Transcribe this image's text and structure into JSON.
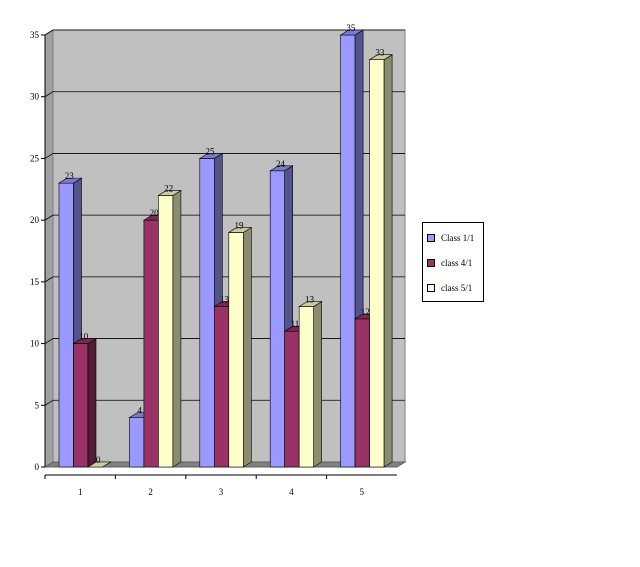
{
  "chart_data": {
    "type": "bar",
    "style": "3d-clustered-column",
    "title": "",
    "xlabel": "",
    "ylabel": "",
    "categories": [
      "1",
      "2",
      "3",
      "4",
      "5"
    ],
    "ylim": [
      0,
      35
    ],
    "yticks": [
      "0",
      "5",
      "10",
      "15",
      "20",
      "25",
      "30",
      "35"
    ],
    "grid": true,
    "legend_position": "right",
    "series": [
      {
        "name": "Class 1/1",
        "color": "#9999ff",
        "values": [
          23,
          4,
          25,
          24,
          35
        ]
      },
      {
        "name": "class 4/1",
        "color": "#993366",
        "values": [
          10,
          20,
          13,
          11,
          12
        ]
      },
      {
        "name": "class 5/1",
        "color": "#ffffcc",
        "values": [
          0,
          22,
          19,
          13,
          33
        ]
      }
    ]
  }
}
